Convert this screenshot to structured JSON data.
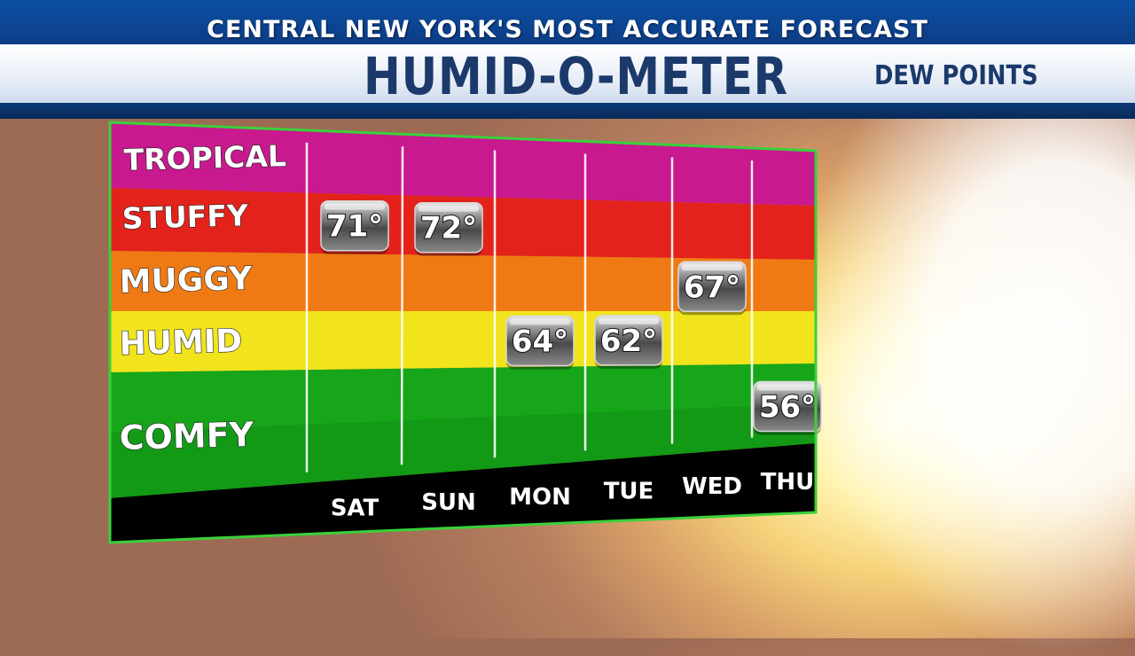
{
  "header": {
    "tagline": "CENTRAL NEW YORK'S MOST ACCURATE FORECAST",
    "title": "HUMID-O-METER",
    "subtitle": "DEW POINTS"
  },
  "colors": {
    "banner_blue": "#0a4fa3",
    "title_navy": "#1b3a6b",
    "tropical": "#c8198f",
    "stuffy": "#e3231b",
    "muggy": "#ef7a14",
    "humid": "#f2e41c",
    "comfy": "#17a51a",
    "day_strip": "#000000",
    "border": "#3ad13a"
  },
  "chart_data": {
    "type": "table",
    "title": "HUMID-O-METER",
    "subtitle": "DEW POINTS",
    "levels": [
      "TROPICAL",
      "STUFFY",
      "MUGGY",
      "HUMID",
      "COMFY"
    ],
    "categories": [
      "SAT",
      "SUN",
      "MON",
      "TUE",
      "WED",
      "THU"
    ],
    "values": [
      71,
      72,
      64,
      62,
      67,
      56
    ],
    "value_labels": [
      "71°",
      "72°",
      "64°",
      "62°",
      "67°",
      "56°"
    ],
    "value_levels": [
      "STUFFY",
      "STUFFY",
      "HUMID",
      "HUMID",
      "MUGGY",
      "COMFY"
    ]
  }
}
